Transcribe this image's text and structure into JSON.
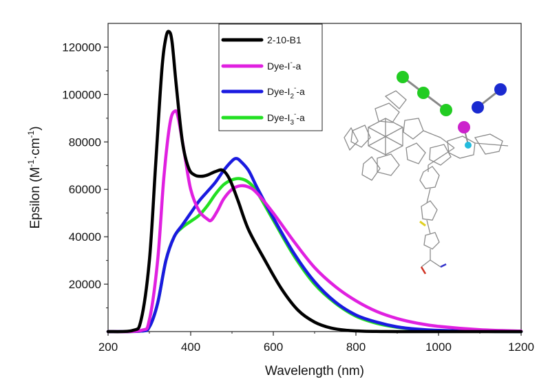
{
  "chart_data": {
    "type": "line",
    "title": "",
    "xlabel": "Wavelength (nm)",
    "ylabel": "Epsilon (M⁻¹·cm⁻¹)",
    "xlim": [
      200,
      1200
    ],
    "ylim": [
      0,
      130000
    ],
    "xticks": [
      200,
      400,
      600,
      800,
      1000,
      1200
    ],
    "yticks": [
      20000,
      40000,
      60000,
      80000,
      100000,
      120000
    ],
    "grid": false,
    "legend": "top-center",
    "series": [
      {
        "name": "2-10-B1",
        "color": "#000000",
        "x": [
          200,
          260,
          280,
          300,
          315,
          330,
          340,
          348,
          355,
          365,
          380,
          395,
          410,
          425,
          440,
          460,
          478,
          495,
          515,
          540,
          580,
          620,
          660,
          700,
          740,
          780,
          820,
          860,
          900,
          1000,
          1200
        ],
        "y": [
          0,
          500,
          5000,
          30000,
          70000,
          110000,
          124000,
          126500,
          122000,
          104000,
          80000,
          69000,
          66000,
          65500,
          66000,
          67500,
          68000,
          64000,
          55000,
          43000,
          30000,
          18000,
          9000,
          4000,
          1500,
          500,
          150,
          50,
          0,
          0,
          0
        ]
      },
      {
        "name": "Dye-I⁻-a",
        "color": "#e020e0",
        "x": [
          200,
          280,
          300,
          320,
          335,
          350,
          362,
          370,
          385,
          400,
          420,
          440,
          450,
          465,
          480,
          500,
          520,
          540,
          560,
          600,
          650,
          700,
          750,
          800,
          850,
          900,
          950,
          1000,
          1100,
          1200
        ],
        "y": [
          0,
          500,
          5000,
          30000,
          65000,
          88000,
          93000,
          90000,
          75000,
          60000,
          51000,
          47500,
          47000,
          51000,
          56000,
          60000,
          61500,
          61000,
          58500,
          50000,
          38000,
          27000,
          19000,
          13000,
          8500,
          5500,
          3500,
          2200,
          800,
          200
        ]
      },
      {
        "name": "Dye-I₂⁻-a",
        "color": "#1a1ae0",
        "x": [
          200,
          280,
          300,
          320,
          340,
          360,
          380,
          400,
          420,
          440,
          460,
          480,
          500,
          510,
          520,
          540,
          560,
          600,
          650,
          700,
          750,
          800,
          850,
          900,
          950,
          1000,
          1100,
          1200
        ],
        "y": [
          0,
          200,
          2000,
          12000,
          30000,
          40000,
          45000,
          50000,
          55000,
          59000,
          63000,
          68000,
          72000,
          73000,
          72000,
          68000,
          61000,
          48000,
          33000,
          21000,
          12500,
          7000,
          4000,
          2000,
          1000,
          500,
          100,
          0
        ]
      },
      {
        "name": "Dye-I₃⁻-a",
        "color": "#22e022",
        "x": [
          200,
          280,
          300,
          320,
          340,
          360,
          380,
          400,
          420,
          440,
          460,
          480,
          500,
          520,
          540,
          560,
          600,
          650,
          700,
          750,
          800,
          850,
          900,
          950,
          1000,
          1100,
          1200
        ],
        "y": [
          0,
          200,
          2000,
          12000,
          30000,
          40000,
          44000,
          46500,
          49000,
          53000,
          58000,
          62000,
          64000,
          64500,
          63000,
          59000,
          47000,
          32000,
          20000,
          12000,
          6500,
          3500,
          1800,
          900,
          400,
          100,
          0
        ]
      }
    ]
  },
  "legend_labels": {
    "s0": {
      "main": "2-10-B1",
      "sub": "",
      "sup": ""
    },
    "s1": {
      "main": "Dye-I",
      "sub": "",
      "sup": "-",
      "tail": "-a"
    },
    "s2": {
      "main": "Dye-I",
      "sub": "2",
      "sup": "-",
      "tail": "-a"
    },
    "s3": {
      "main": "Dye-I",
      "sub": "3",
      "sup": "-",
      "tail": "-a"
    }
  },
  "y_axis_label": {
    "main": "Epsilon (M",
    "sup1": "-1",
    "mid": "·cm",
    "sup2": "-1",
    "end": ")"
  },
  "molecule_colors": {
    "iodine_chain": "#22cc22",
    "iodine_dimer": "#1a2ad0",
    "iodine_bound": "#cc22cc",
    "metal_center": "#22bbdd",
    "sulfur": "#e0d020",
    "oxygen": "#d03020"
  }
}
